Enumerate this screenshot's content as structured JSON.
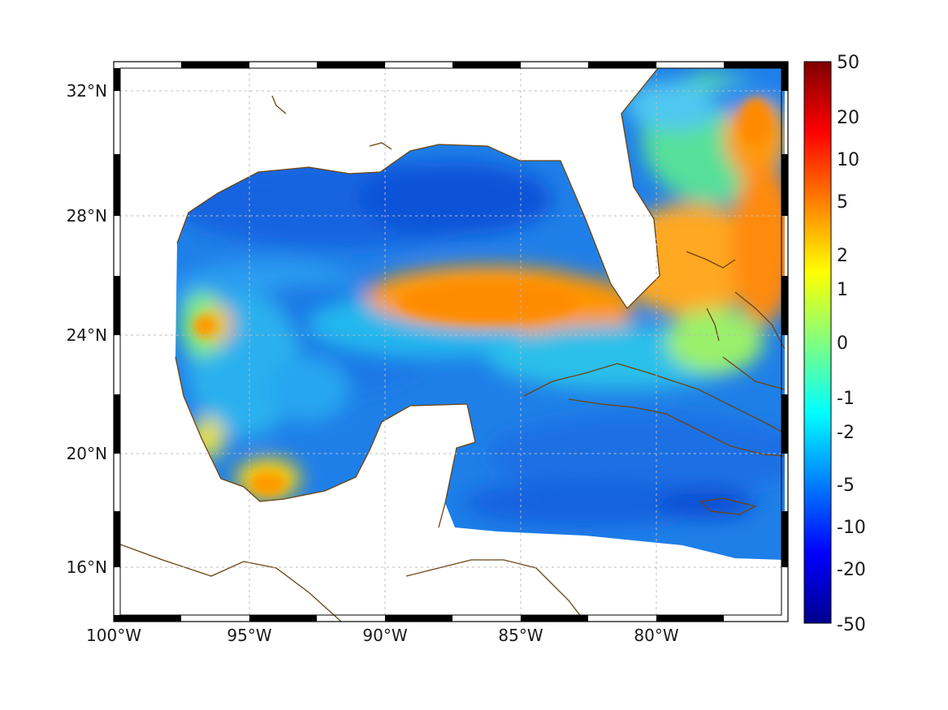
{
  "map": {
    "lon_labels": [
      "100°W",
      "95°W",
      "90°W",
      "85°W",
      "80°W"
    ],
    "lat_labels": [
      "32°N",
      "28°N",
      "24°N",
      "20°N",
      "16°N"
    ],
    "coastline_color": "#6b4410",
    "land_color": "#ffffff"
  },
  "colorbar": {
    "labels": [
      "50",
      "20",
      "10",
      "5",
      "2",
      "1",
      "0",
      "-1",
      "-2",
      "-5",
      "-10",
      "-20",
      "-50"
    ],
    "colors": [
      "#7f0000",
      "#ff0000",
      "#ff8000",
      "#ffff00",
      "#80ff80",
      "#00ffff",
      "#0080ff",
      "#0000ff",
      "#00008f"
    ]
  }
}
